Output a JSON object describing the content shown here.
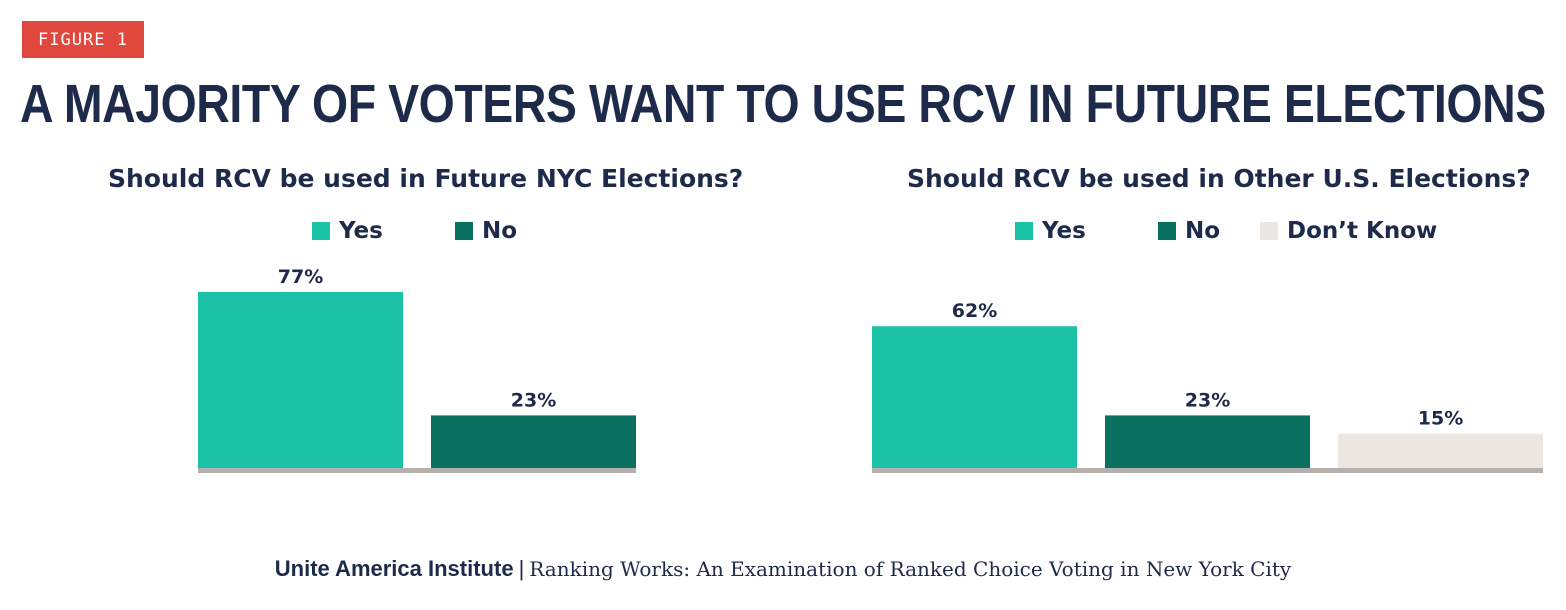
{
  "badge": "FIGURE 1",
  "headline": "A MAJORITY OF VOTERS WANT TO USE RCV IN FUTURE ELECTIONS",
  "colors": {
    "yes": "#1bc2a5",
    "no": "#0a7060",
    "dont_know": "#ece7e3",
    "baseline": "#b5b0ac",
    "text": "#1e2a4a",
    "badge": "#e0483d"
  },
  "chart_data": [
    {
      "type": "bar",
      "title": "Should RCV be used in Future NYC Elections?",
      "categories": [
        "Yes",
        "No"
      ],
      "values": [
        77,
        23
      ],
      "labels": [
        "77%",
        "23%"
      ],
      "ylim": [
        0,
        100
      ],
      "unit": "%",
      "legend": [
        "Yes",
        "No"
      ],
      "legend_position": "top-center",
      "grid": false
    },
    {
      "type": "bar",
      "title": "Should RCV be used in Other U.S. Elections?",
      "categories": [
        "Yes",
        "No",
        "Don’t Know"
      ],
      "values": [
        62,
        23,
        15
      ],
      "labels": [
        "62%",
        "23%",
        "15%"
      ],
      "ylim": [
        0,
        100
      ],
      "unit": "%",
      "legend": [
        "Yes",
        "No",
        "Don’t Know"
      ],
      "legend_position": "top-center",
      "grid": false
    }
  ],
  "footer": {
    "org": "Unite America Institute",
    "separator": "|",
    "publication": "Ranking Works: An Examination of Ranked Choice Voting in New York City"
  }
}
